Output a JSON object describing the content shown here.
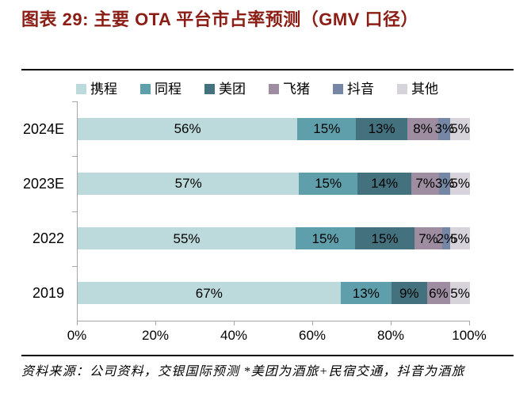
{
  "title": "图表 29: 主要 OTA 平台市占率预测（GMV 口径）",
  "footer": {
    "source_text": "资料来源：公司资料，交银国际预测  *美团为酒旅+民宿交通，抖音为酒旅"
  },
  "colors": {
    "title_accent": "#8b1d15",
    "axis_gray": "#a6a6a6",
    "rule_black": "#000000"
  },
  "chart_data": {
    "type": "bar",
    "variant": "stacked-100",
    "orientation": "horizontal",
    "title": "主要 OTA 平台市占率预测（GMV 口径）",
    "categories": [
      "2024E",
      "2023E",
      "2022",
      "2019"
    ],
    "series": [
      {
        "name": "携程",
        "color": "#bcdadc",
        "values": [
          56,
          57,
          55,
          67
        ]
      },
      {
        "name": "同程",
        "color": "#5f9fab",
        "values": [
          15,
          15,
          15,
          13
        ]
      },
      {
        "name": "美团",
        "color": "#44717e",
        "values": [
          13,
          14,
          15,
          9
        ]
      },
      {
        "name": "飞猪",
        "color": "#9e8da0",
        "values": [
          8,
          7,
          7,
          6
        ]
      },
      {
        "name": "抖音",
        "color": "#7587a5",
        "values": [
          3,
          3,
          2,
          0
        ]
      },
      {
        "name": "其他",
        "color": "#d7d3da",
        "values": [
          5,
          5,
          5,
          5
        ]
      }
    ],
    "data_label_suffix": "%",
    "xlabel": "",
    "ylabel": "",
    "xlim": [
      0,
      100
    ],
    "xticks": [
      "0%",
      "20%",
      "40%",
      "60%",
      "80%",
      "100%"
    ],
    "grid": false,
    "legend_position": "top",
    "data_labels": true
  }
}
